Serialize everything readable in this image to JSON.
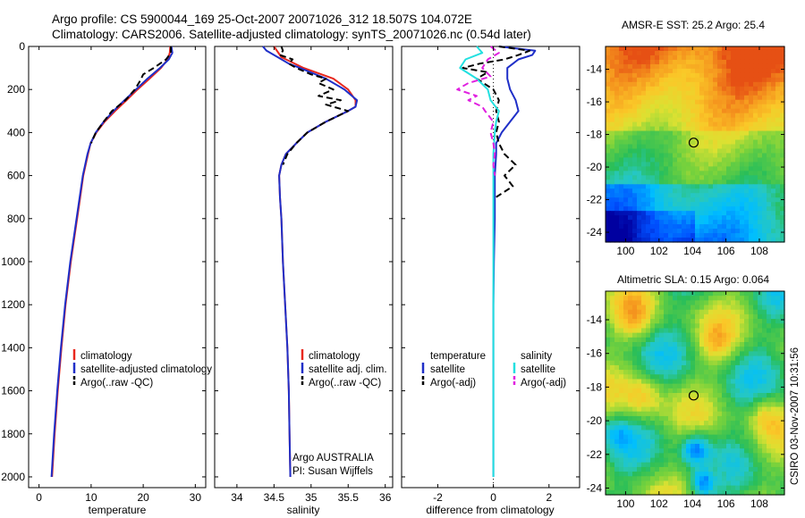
{
  "title": {
    "line1": "Argo profile: CS 5900044_169 25-Oct-2007 20071026_312 18.507S 104.072E",
    "line2": "Climatology: CARS2006. Satellite-adjusted climatology: synTS_20071026.nc (0.54d later)"
  },
  "colors": {
    "climatology": "#e8281e",
    "satellite": "#1f2fc8",
    "argo": "#000000",
    "sat_salinity": "#22e0e0",
    "argo_salinity": "#e020e0"
  },
  "chart_data": [
    {
      "type": "line",
      "id": "temperature",
      "xlabel": "temperature",
      "xlim": [
        -2,
        32
      ],
      "ylim": [
        2050,
        0
      ],
      "xticks": [
        0,
        10,
        20,
        30
      ],
      "yticks": [
        0,
        200,
        400,
        600,
        800,
        1000,
        1200,
        1400,
        1600,
        1800,
        2000
      ],
      "legend": [
        "climatology",
        "satellite-adjusted climatology",
        "Argo(..raw -QC)"
      ],
      "series": [
        {
          "name": "climatology",
          "y": [
            0,
            30,
            60,
            100,
            150,
            200,
            250,
            300,
            350,
            400,
            450,
            500,
            600,
            700,
            800,
            900,
            1000,
            1200,
            1400,
            1600,
            1800,
            2000
          ],
          "x": [
            25.2,
            25.1,
            24.7,
            23.4,
            21.2,
            18.9,
            16.8,
            14.6,
            12.6,
            11.0,
            9.9,
            9.4,
            8.5,
            7.9,
            7.3,
            6.7,
            6.1,
            5.1,
            4.3,
            3.6,
            3.0,
            2.5
          ]
        },
        {
          "name": "satellite",
          "y": [
            0,
            30,
            60,
            100,
            150,
            200,
            250,
            300,
            350,
            400,
            450,
            500,
            600,
            700,
            800,
            900,
            1000,
            1200,
            1400,
            1600,
            1800,
            2000
          ],
          "x": [
            25.4,
            25.6,
            24.9,
            23.2,
            20.8,
            18.6,
            16.4,
            14.3,
            12.4,
            10.9,
            9.9,
            9.3,
            8.4,
            7.8,
            7.2,
            6.6,
            6.0,
            5.0,
            4.2,
            3.5,
            2.9,
            2.4
          ]
        },
        {
          "name": "argo",
          "y": [
            0,
            30,
            60,
            100,
            130,
            160,
            200,
            250,
            300,
            350,
            400,
            450
          ],
          "x": [
            25.3,
            25.3,
            24.4,
            22.0,
            20.0,
            19.4,
            18.4,
            16.6,
            14.0,
            12.4,
            10.9,
            10.0
          ]
        }
      ]
    },
    {
      "type": "line",
      "id": "salinity",
      "xlabel": "salinity",
      "xlim": [
        33.7,
        36.1
      ],
      "ylim": [
        2050,
        0
      ],
      "xticks": [
        34,
        34.5,
        35,
        35.5,
        36
      ],
      "xticklabels": [
        "34",
        "34.5",
        "35",
        "35.5",
        "36"
      ],
      "legend": [
        "climatology",
        "satellite adj. clim.",
        "Argo(..raw -QC)"
      ],
      "annotation": [
        "Argo AUSTRALIA",
        "PI: Susan Wijffels"
      ],
      "series": [
        {
          "name": "climatology",
          "y": [
            0,
            50,
            100,
            150,
            200,
            250,
            280,
            300,
            350,
            400,
            450,
            500,
            550,
            600,
            700,
            800,
            1000,
            1200,
            1400,
            1600,
            1800,
            2000
          ],
          "x": [
            34.5,
            34.6,
            34.9,
            35.3,
            35.5,
            35.6,
            35.6,
            35.5,
            35.2,
            34.95,
            34.8,
            34.66,
            34.6,
            34.57,
            34.58,
            34.6,
            34.62,
            34.65,
            34.68,
            34.7,
            34.71,
            34.72
          ]
        },
        {
          "name": "satellite",
          "y": [
            0,
            20,
            50,
            80,
            100,
            150,
            200,
            250,
            280,
            300,
            350,
            400,
            450,
            500,
            550,
            600,
            700,
            800,
            1000,
            1200,
            1400,
            1600,
            1800,
            2000
          ],
          "x": [
            34.35,
            34.4,
            34.55,
            34.7,
            34.85,
            35.2,
            35.45,
            35.62,
            35.6,
            35.5,
            35.2,
            34.95,
            34.8,
            34.66,
            34.6,
            34.57,
            34.58,
            34.6,
            34.62,
            34.65,
            34.68,
            34.7,
            34.71,
            34.72
          ]
        },
        {
          "name": "argo",
          "y": [
            0,
            20,
            40,
            60,
            80,
            100,
            130,
            150,
            170,
            200,
            230,
            250,
            270,
            300,
            350,
            400,
            450,
            500,
            550
          ],
          "x": [
            34.6,
            34.62,
            34.58,
            34.75,
            34.7,
            34.8,
            35.0,
            35.2,
            35.1,
            35.3,
            35.1,
            35.4,
            35.2,
            35.5,
            35.2,
            34.95,
            34.8,
            34.68,
            34.62
          ]
        }
      ]
    },
    {
      "type": "line",
      "id": "difference",
      "xlabel": "difference from climatology",
      "xlim": [
        -3.3,
        3.1
      ],
      "ylim": [
        2050,
        0
      ],
      "xticks": [
        -2,
        0,
        2
      ],
      "legend_left_title": "temperature",
      "legend_right_title": "salinity",
      "legend_left": [
        "satellite",
        "Argo(-adj)"
      ],
      "legend_right": [
        "satellite",
        "Argo(-adj)"
      ],
      "series": [
        {
          "name": "temp-satellite",
          "y": [
            0,
            20,
            40,
            60,
            80,
            100,
            150,
            200,
            250,
            300,
            350,
            400,
            450,
            500,
            600,
            800,
            1000,
            1200,
            1400,
            1600,
            1800,
            2000
          ],
          "x": [
            0.2,
            1.5,
            1.4,
            0.9,
            0.7,
            0.5,
            0.5,
            0.6,
            0.8,
            0.9,
            0.6,
            0.3,
            0.1,
            0.1,
            0.05,
            0.05,
            0.02,
            0.0,
            0.0,
            0.0,
            0.0,
            0.0
          ]
        },
        {
          "name": "temp-argo",
          "y": [
            0,
            20,
            40,
            60,
            80,
            100,
            120,
            150,
            200,
            250,
            300,
            350,
            400,
            450,
            500,
            550,
            600,
            650,
            700
          ],
          "x": [
            0.2,
            1.3,
            0.9,
            0.4,
            -0.5,
            -1.1,
            -0.2,
            -0.6,
            0.0,
            0.2,
            0.1,
            0.2,
            0.1,
            0.2,
            0.4,
            0.8,
            0.4,
            0.7,
            0.1
          ]
        },
        {
          "name": "sal-satellite",
          "y": [
            0,
            30,
            60,
            100,
            150,
            200,
            250,
            300,
            350,
            400,
            500,
            600,
            800,
            1000,
            1200,
            1400,
            1600,
            1800,
            2000
          ],
          "x": [
            -0.6,
            -0.4,
            -1.0,
            -1.2,
            -0.6,
            -0.2,
            -0.1,
            0.2,
            0.1,
            0.05,
            0.0,
            0.0,
            0.0,
            0.0,
            0.0,
            0.0,
            0.0,
            0.0,
            0.0
          ]
        },
        {
          "name": "sal-argo",
          "y": [
            0,
            30,
            60,
            100,
            140,
            170,
            200,
            230,
            250,
            280,
            300,
            350,
            400,
            450,
            500,
            550,
            600
          ],
          "x": [
            -0.1,
            0.2,
            -0.2,
            -0.4,
            -0.1,
            -0.9,
            -1.3,
            -0.6,
            -0.9,
            -0.4,
            -0.3,
            0.0,
            -0.1,
            0.0,
            0.05,
            0.0,
            0.05
          ]
        }
      ]
    },
    {
      "type": "heatmap",
      "id": "sst",
      "title": "AMSR-E SST: 25.2 Argo: 25.4",
      "xlim": [
        98.8,
        109.5
      ],
      "ylim": [
        -24.6,
        -12.6
      ],
      "xticks": [
        100,
        102,
        104,
        106,
        108
      ],
      "yticks": [
        -14,
        -16,
        -18,
        -20,
        -22,
        -24
      ],
      "marker": {
        "lon": 104.07,
        "lat": -18.5
      }
    },
    {
      "type": "heatmap",
      "id": "sla",
      "title": "Altimetric SLA: 0.15 Argo: 0.064",
      "xlim": [
        98.8,
        109.5
      ],
      "ylim": [
        -24.4,
        -12.3
      ],
      "xticks": [
        100,
        102,
        104,
        106,
        108
      ],
      "yticks": [
        -14,
        -16,
        -18,
        -20,
        -22,
        -24
      ],
      "marker": {
        "lon": 104.07,
        "lat": -18.5
      }
    }
  ],
  "footer": {
    "stamp": "CSIRO 03-Nov-2007 10:31:56"
  }
}
